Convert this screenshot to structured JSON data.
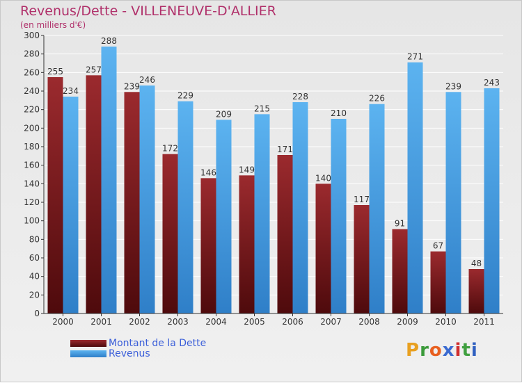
{
  "title": "Revenus/Dette - VILLENEUVE-D'ALLIER",
  "subtitle": "(en milliers d'€)",
  "brand": {
    "letters": [
      "P",
      "r",
      "o",
      "x",
      "i",
      "t",
      "i"
    ],
    "colors": [
      "#e8a020",
      "#3a9a3a",
      "#e86020",
      "#3a6ad0",
      "#d03030",
      "#40a040",
      "#3060c0"
    ]
  },
  "colors": {
    "dette": "#7a1a1e",
    "revenus": "#4aa3e6",
    "axis": "#333333",
    "grid": "#ffffff",
    "text": "#333333"
  },
  "chart_data": {
    "type": "bar",
    "title": "Revenus/Dette - VILLENEUVE-D'ALLIER",
    "ylabel": "(en milliers d'€)",
    "xlabel": "",
    "ylim": [
      0,
      300
    ],
    "ytick_step": 20,
    "grid": true,
    "legend_position": "bottom-left",
    "categories": [
      "2000",
      "2001",
      "2002",
      "2003",
      "2004",
      "2005",
      "2006",
      "2007",
      "2008",
      "2009",
      "2010",
      "2011"
    ],
    "series": [
      {
        "name": "Montant de la Dette",
        "values": [
          255,
          257,
          239,
          172,
          146,
          149,
          171,
          140,
          117,
          91,
          67,
          48
        ]
      },
      {
        "name": "Revenus",
        "values": [
          234,
          288,
          246,
          229,
          209,
          215,
          228,
          210,
          226,
          271,
          239,
          243
        ]
      }
    ]
  }
}
